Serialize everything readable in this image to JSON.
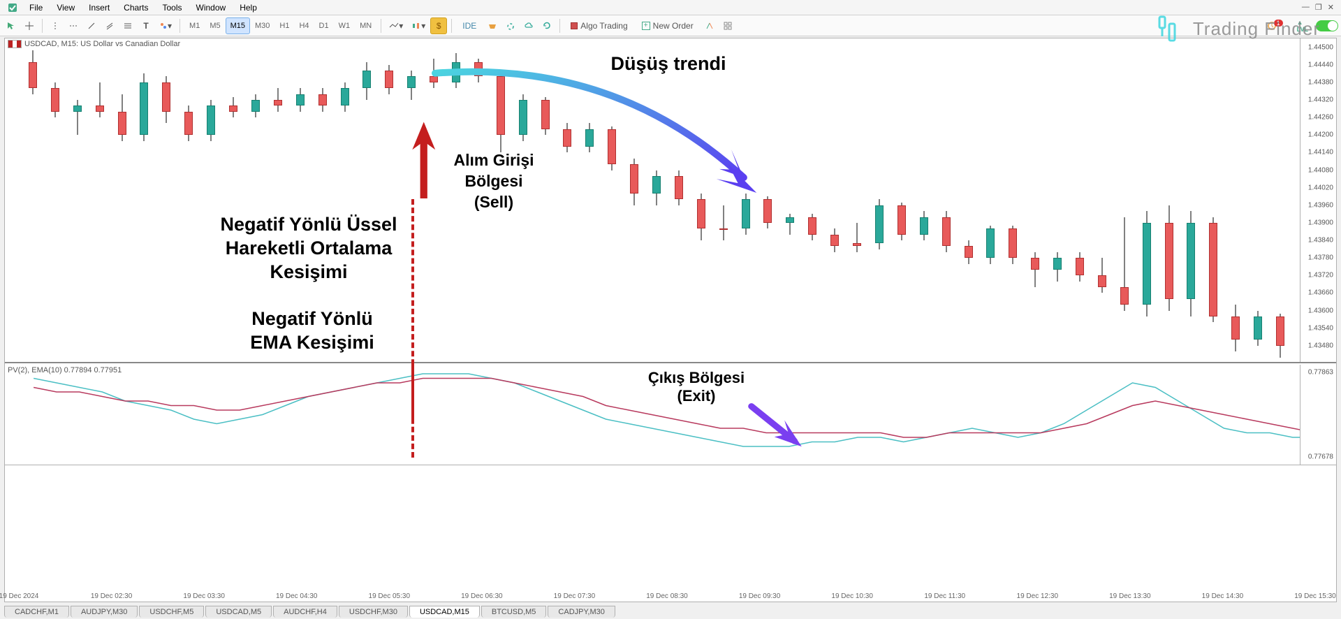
{
  "menu": {
    "items": [
      "File",
      "View",
      "Insert",
      "Charts",
      "Tools",
      "Window",
      "Help"
    ]
  },
  "timeframes": [
    "M1",
    "M5",
    "M15",
    "M30",
    "H1",
    "H4",
    "D1",
    "W1",
    "MN"
  ],
  "active_tf": "M15",
  "toolbar": {
    "algo": "Algo Trading",
    "new_order": "New Order",
    "ide": "IDE"
  },
  "watermark": "Trading Finder",
  "chart": {
    "title": "USDCAD, M15:  US Dollar vs Canadian Dollar",
    "y_min": 1.4342,
    "y_max": 1.4453,
    "y_ticks": [
      1.445,
      1.4444,
      1.4438,
      1.4432,
      1.4426,
      1.442,
      1.4414,
      1.4408,
      1.4402,
      1.4396,
      1.439,
      1.4384,
      1.4378,
      1.4372,
      1.4366,
      1.436,
      1.4354,
      1.4348
    ],
    "candles": [
      {
        "o": 1.4445,
        "h": 1.4449,
        "l": 1.4434,
        "c": 1.4436,
        "d": "dn"
      },
      {
        "o": 1.4436,
        "h": 1.4438,
        "l": 1.4426,
        "c": 1.4428,
        "d": "dn"
      },
      {
        "o": 1.4428,
        "h": 1.4432,
        "l": 1.442,
        "c": 1.443,
        "d": "up"
      },
      {
        "o": 1.443,
        "h": 1.4438,
        "l": 1.4426,
        "c": 1.4428,
        "d": "dn"
      },
      {
        "o": 1.4428,
        "h": 1.4434,
        "l": 1.4418,
        "c": 1.442,
        "d": "dn"
      },
      {
        "o": 1.442,
        "h": 1.4441,
        "l": 1.4418,
        "c": 1.4438,
        "d": "up"
      },
      {
        "o": 1.4438,
        "h": 1.444,
        "l": 1.4424,
        "c": 1.4428,
        "d": "dn"
      },
      {
        "o": 1.4428,
        "h": 1.443,
        "l": 1.4418,
        "c": 1.442,
        "d": "dn"
      },
      {
        "o": 1.442,
        "h": 1.4432,
        "l": 1.4418,
        "c": 1.443,
        "d": "up"
      },
      {
        "o": 1.443,
        "h": 1.4433,
        "l": 1.4426,
        "c": 1.4428,
        "d": "dn"
      },
      {
        "o": 1.4428,
        "h": 1.4434,
        "l": 1.4426,
        "c": 1.4432,
        "d": "up"
      },
      {
        "o": 1.4432,
        "h": 1.4436,
        "l": 1.4428,
        "c": 1.443,
        "d": "dn"
      },
      {
        "o": 1.443,
        "h": 1.4436,
        "l": 1.4428,
        "c": 1.4434,
        "d": "up"
      },
      {
        "o": 1.4434,
        "h": 1.4436,
        "l": 1.4428,
        "c": 1.443,
        "d": "dn"
      },
      {
        "o": 1.443,
        "h": 1.4438,
        "l": 1.4428,
        "c": 1.4436,
        "d": "up"
      },
      {
        "o": 1.4436,
        "h": 1.4445,
        "l": 1.4432,
        "c": 1.4442,
        "d": "up"
      },
      {
        "o": 1.4442,
        "h": 1.4444,
        "l": 1.4434,
        "c": 1.4436,
        "d": "dn"
      },
      {
        "o": 1.4436,
        "h": 1.4442,
        "l": 1.4432,
        "c": 1.444,
        "d": "up"
      },
      {
        "o": 1.444,
        "h": 1.4446,
        "l": 1.4436,
        "c": 1.4438,
        "d": "dn"
      },
      {
        "o": 1.4438,
        "h": 1.4448,
        "l": 1.4436,
        "c": 1.4445,
        "d": "up"
      },
      {
        "o": 1.4445,
        "h": 1.4446,
        "l": 1.4438,
        "c": 1.444,
        "d": "dn"
      },
      {
        "o": 1.444,
        "h": 1.4442,
        "l": 1.4414,
        "c": 1.442,
        "d": "dn"
      },
      {
        "o": 1.442,
        "h": 1.4434,
        "l": 1.4418,
        "c": 1.4432,
        "d": "up"
      },
      {
        "o": 1.4432,
        "h": 1.4433,
        "l": 1.442,
        "c": 1.4422,
        "d": "dn"
      },
      {
        "o": 1.4422,
        "h": 1.4424,
        "l": 1.4414,
        "c": 1.4416,
        "d": "dn"
      },
      {
        "o": 1.4416,
        "h": 1.4424,
        "l": 1.4414,
        "c": 1.4422,
        "d": "up"
      },
      {
        "o": 1.4422,
        "h": 1.4423,
        "l": 1.4408,
        "c": 1.441,
        "d": "dn"
      },
      {
        "o": 1.441,
        "h": 1.4412,
        "l": 1.4396,
        "c": 1.44,
        "d": "dn"
      },
      {
        "o": 1.44,
        "h": 1.4408,
        "l": 1.4396,
        "c": 1.4406,
        "d": "up"
      },
      {
        "o": 1.4406,
        "h": 1.4408,
        "l": 1.4396,
        "c": 1.4398,
        "d": "dn"
      },
      {
        "o": 1.4398,
        "h": 1.44,
        "l": 1.4384,
        "c": 1.4388,
        "d": "dn"
      },
      {
        "o": 1.4388,
        "h": 1.4396,
        "l": 1.4384,
        "c": 1.4388,
        "d": "dn"
      },
      {
        "o": 1.4388,
        "h": 1.44,
        "l": 1.4386,
        "c": 1.4398,
        "d": "up"
      },
      {
        "o": 1.4398,
        "h": 1.4399,
        "l": 1.4388,
        "c": 1.439,
        "d": "dn"
      },
      {
        "o": 1.439,
        "h": 1.4393,
        "l": 1.4386,
        "c": 1.4392,
        "d": "up"
      },
      {
        "o": 1.4392,
        "h": 1.4393,
        "l": 1.4384,
        "c": 1.4386,
        "d": "dn"
      },
      {
        "o": 1.4386,
        "h": 1.4388,
        "l": 1.438,
        "c": 1.4382,
        "d": "dn"
      },
      {
        "o": 1.4382,
        "h": 1.439,
        "l": 1.438,
        "c": 1.4383,
        "d": "dn"
      },
      {
        "o": 1.4383,
        "h": 1.4398,
        "l": 1.4381,
        "c": 1.4396,
        "d": "up"
      },
      {
        "o": 1.4396,
        "h": 1.4397,
        "l": 1.4384,
        "c": 1.4386,
        "d": "dn"
      },
      {
        "o": 1.4386,
        "h": 1.4394,
        "l": 1.4384,
        "c": 1.4392,
        "d": "up"
      },
      {
        "o": 1.4392,
        "h": 1.4394,
        "l": 1.438,
        "c": 1.4382,
        "d": "dn"
      },
      {
        "o": 1.4382,
        "h": 1.4384,
        "l": 1.4376,
        "c": 1.4378,
        "d": "dn"
      },
      {
        "o": 1.4378,
        "h": 1.4389,
        "l": 1.4376,
        "c": 1.4388,
        "d": "up"
      },
      {
        "o": 1.4388,
        "h": 1.4389,
        "l": 1.4376,
        "c": 1.4378,
        "d": "dn"
      },
      {
        "o": 1.4378,
        "h": 1.438,
        "l": 1.4368,
        "c": 1.4374,
        "d": "dn"
      },
      {
        "o": 1.4374,
        "h": 1.438,
        "l": 1.437,
        "c": 1.4378,
        "d": "up"
      },
      {
        "o": 1.4378,
        "h": 1.438,
        "l": 1.437,
        "c": 1.4372,
        "d": "dn"
      },
      {
        "o": 1.4372,
        "h": 1.4378,
        "l": 1.4366,
        "c": 1.4368,
        "d": "dn"
      },
      {
        "o": 1.4368,
        "h": 1.4392,
        "l": 1.436,
        "c": 1.4362,
        "d": "dn"
      },
      {
        "o": 1.4362,
        "h": 1.4394,
        "l": 1.4358,
        "c": 1.439,
        "d": "up"
      },
      {
        "o": 1.439,
        "h": 1.4396,
        "l": 1.436,
        "c": 1.4364,
        "d": "dn"
      },
      {
        "o": 1.4364,
        "h": 1.4394,
        "l": 1.4358,
        "c": 1.439,
        "d": "up"
      },
      {
        "o": 1.439,
        "h": 1.4392,
        "l": 1.4356,
        "c": 1.4358,
        "d": "dn"
      },
      {
        "o": 1.4358,
        "h": 1.4362,
        "l": 1.4346,
        "c": 1.435,
        "d": "dn"
      },
      {
        "o": 1.435,
        "h": 1.436,
        "l": 1.4348,
        "c": 1.4358,
        "d": "up"
      },
      {
        "o": 1.4358,
        "h": 1.4359,
        "l": 1.4344,
        "c": 1.4348,
        "d": "dn"
      }
    ]
  },
  "indicator": {
    "title": "PV(2),  EMA(10) 0.77894 0.77951",
    "y_ticks": [
      0.77863,
      0.77678
    ],
    "lines": {
      "pv": {
        "color": "#4bbfc4",
        "width": 1.5,
        "pts": [
          0.7785,
          0.7784,
          0.7783,
          0.7782,
          0.778,
          0.7779,
          0.7778,
          0.7776,
          0.7775,
          0.7776,
          0.7777,
          0.7779,
          0.7781,
          0.7782,
          0.7783,
          0.7784,
          0.7785,
          0.7786,
          0.7786,
          0.7786,
          0.7785,
          0.7784,
          0.7782,
          0.778,
          0.7778,
          0.7776,
          0.7775,
          0.7774,
          0.7773,
          0.7772,
          0.7771,
          0.777,
          0.777,
          0.777,
          0.7771,
          0.7771,
          0.7772,
          0.7772,
          0.7771,
          0.7772,
          0.7773,
          0.7774,
          0.7773,
          0.7772,
          0.7773,
          0.7775,
          0.7778,
          0.7781,
          0.7784,
          0.7783,
          0.778,
          0.7777,
          0.7774,
          0.7773,
          0.7773,
          0.7772,
          0.7772
        ]
      },
      "ema": {
        "color": "#b83a5e",
        "width": 1.5,
        "pts": [
          0.7783,
          0.7782,
          0.7782,
          0.7781,
          0.778,
          0.778,
          0.7779,
          0.7779,
          0.7778,
          0.7778,
          0.7779,
          0.778,
          0.7781,
          0.7782,
          0.7783,
          0.7784,
          0.7784,
          0.7785,
          0.7785,
          0.7785,
          0.7785,
          0.7784,
          0.7783,
          0.7782,
          0.7781,
          0.7779,
          0.7778,
          0.7777,
          0.7776,
          0.7775,
          0.7774,
          0.7774,
          0.7773,
          0.7773,
          0.7773,
          0.7773,
          0.7773,
          0.7773,
          0.7772,
          0.7772,
          0.7773,
          0.7773,
          0.7773,
          0.7773,
          0.7773,
          0.7774,
          0.7775,
          0.7777,
          0.7779,
          0.778,
          0.7779,
          0.7778,
          0.7777,
          0.7776,
          0.7775,
          0.7774,
          0.7773
        ]
      }
    }
  },
  "x_labels": [
    "19 Dec 2024",
    "19 Dec 02:30",
    "19 Dec 03:30",
    "19 Dec 04:30",
    "19 Dec 05:30",
    "19 Dec 06:30",
    "19 Dec 07:30",
    "19 Dec 08:30",
    "19 Dec 09:30",
    "19 Dec 10:30",
    "19 Dec 11:30",
    "19 Dec 12:30",
    "19 Dec 13:30",
    "19 Dec 14:30",
    "19 Dec 15:30"
  ],
  "annotations": {
    "trend": "Düşüş trendi",
    "sell_entry": "Alım Girişi\nBölgesi\n(Sell)",
    "ema_cross1": "Negatif Yönlü Üssel\nHareketli Ortalama\nKesişimi",
    "ema_cross2": "Negatif Yönlü\nEMA Kesişimi",
    "exit": "Çıkış Bölgesi\n(Exit)"
  },
  "tabs": [
    "CADCHF,M1",
    "AUDJPY,M30",
    "USDCHF,M5",
    "USDCAD,M5",
    "AUDCHF,H4",
    "USDCHF,M30",
    "USDCAD,M15",
    "BTCUSD,M5",
    "CADJPY,M30"
  ],
  "active_tab": "USDCAD,M15",
  "colors": {
    "trend_arrow_start": "#4bd4e0",
    "trend_arrow_end": "#5a3ff0",
    "red_arrow": "#c41e1e",
    "exit_arrow": "#7a3ff0"
  }
}
